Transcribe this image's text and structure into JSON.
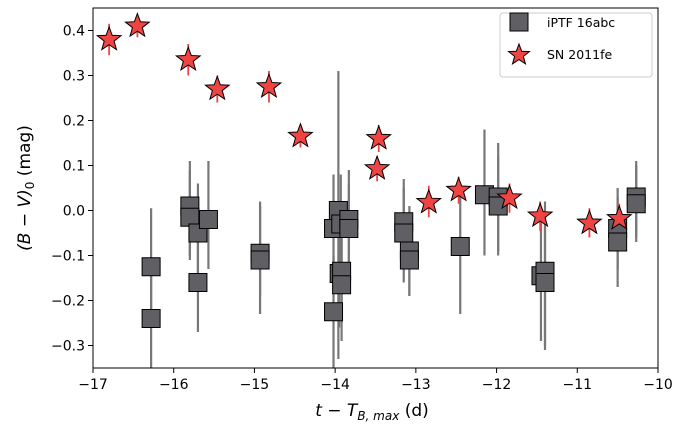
{
  "chart_data": {
    "type": "scatter",
    "xlabel_base": "t − T",
    "xlabel_sub": "B, max",
    "xlabel_unit": " (d)",
    "ylabel_base": "(B − V)",
    "ylabel_sub": "0",
    "ylabel_unit": " (mag)",
    "xlim": [
      -17,
      -10
    ],
    "ylim": [
      -0.35,
      0.45
    ],
    "xticks": [
      -17,
      -16,
      -15,
      -14,
      -13,
      -12,
      -11,
      -10
    ],
    "yticks": [
      -0.3,
      -0.2,
      -0.1,
      0.0,
      0.1,
      0.2,
      0.3,
      0.4
    ],
    "legend_position": "top-right",
    "series": [
      {
        "name": "iPTF 16abc",
        "marker": "square",
        "color": "#5f5f64",
        "errcolor": "#777777",
        "points": [
          {
            "x": -16.28,
            "y": -0.125,
            "lo": -0.24,
            "hi": 0.005
          },
          {
            "x": -16.28,
            "y": -0.24,
            "lo": -0.35,
            "hi": -0.13
          },
          {
            "x": -15.8,
            "y": 0.01,
            "lo": -0.1,
            "hi": 0.11
          },
          {
            "x": -15.8,
            "y": -0.015,
            "lo": -0.11,
            "hi": 0.09
          },
          {
            "x": -15.7,
            "y": -0.05,
            "lo": -0.16,
            "hi": 0.06
          },
          {
            "x": -15.7,
            "y": -0.16,
            "lo": -0.27,
            "hi": -0.05
          },
          {
            "x": -15.57,
            "y": -0.02,
            "lo": -0.13,
            "hi": 0.11
          },
          {
            "x": -14.93,
            "y": -0.095,
            "lo": -0.19,
            "hi": 0.02
          },
          {
            "x": -14.93,
            "y": -0.11,
            "lo": -0.23,
            "hi": 0.01
          },
          {
            "x": -14.02,
            "y": -0.04,
            "lo": -0.14,
            "hi": 0.08
          },
          {
            "x": -13.96,
            "y": 0.0,
            "lo": -0.33,
            "hi": 0.31
          },
          {
            "x": -13.93,
            "y": -0.03,
            "lo": -0.12,
            "hi": 0.08
          },
          {
            "x": -14.02,
            "y": -0.225,
            "lo": -0.35,
            "hi": -0.1
          },
          {
            "x": -13.95,
            "y": -0.14,
            "lo": -0.26,
            "hi": -0.02
          },
          {
            "x": -13.92,
            "y": -0.135,
            "lo": -0.25,
            "hi": -0.03
          },
          {
            "x": -13.92,
            "y": -0.165,
            "lo": -0.29,
            "hi": -0.05
          },
          {
            "x": -13.83,
            "y": -0.02,
            "lo": -0.13,
            "hi": 0.09
          },
          {
            "x": -13.83,
            "y": -0.04,
            "lo": -0.15,
            "hi": 0.06
          },
          {
            "x": -13.15,
            "y": -0.025,
            "lo": -0.13,
            "hi": 0.07
          },
          {
            "x": -13.15,
            "y": -0.05,
            "lo": -0.16,
            "hi": 0.05
          },
          {
            "x": -13.08,
            "y": -0.09,
            "lo": -0.19,
            "hi": 0.01
          },
          {
            "x": -13.08,
            "y": -0.11,
            "lo": -0.19,
            "hi": -0.02
          },
          {
            "x": -12.45,
            "y": -0.08,
            "lo": -0.23,
            "hi": 0.06
          },
          {
            "x": -12.15,
            "y": 0.035,
            "lo": -0.1,
            "hi": 0.18
          },
          {
            "x": -11.98,
            "y": 0.03,
            "lo": -0.09,
            "hi": 0.15
          },
          {
            "x": -11.98,
            "y": 0.01,
            "lo": -0.1,
            "hi": 0.12
          },
          {
            "x": -11.45,
            "y": -0.145,
            "lo": -0.29,
            "hi": -0.01
          },
          {
            "x": -11.4,
            "y": -0.135,
            "lo": -0.31,
            "hi": 0.02
          },
          {
            "x": -11.4,
            "y": -0.16,
            "lo": -0.3,
            "hi": -0.03
          },
          {
            "x": -10.5,
            "y": -0.04,
            "lo": -0.13,
            "hi": 0.05
          },
          {
            "x": -10.5,
            "y": -0.07,
            "lo": -0.17,
            "hi": 0.03
          },
          {
            "x": -10.27,
            "y": 0.03,
            "lo": -0.06,
            "hi": 0.11
          },
          {
            "x": -10.27,
            "y": 0.015,
            "lo": -0.07,
            "hi": 0.1
          }
        ]
      },
      {
        "name": "SN 2011fe",
        "marker": "star",
        "color": "#ef4444",
        "errcolor": "#ef4444",
        "points": [
          {
            "x": -16.8,
            "y": 0.38,
            "lo": 0.345,
            "hi": 0.415
          },
          {
            "x": -16.45,
            "y": 0.41,
            "lo": 0.385,
            "hi": 0.435
          },
          {
            "x": -15.82,
            "y": 0.335,
            "lo": 0.3,
            "hi": 0.37
          },
          {
            "x": -15.46,
            "y": 0.27,
            "lo": 0.24,
            "hi": 0.3
          },
          {
            "x": -14.82,
            "y": 0.275,
            "lo": 0.24,
            "hi": 0.31
          },
          {
            "x": -14.43,
            "y": 0.165,
            "lo": 0.14,
            "hi": 0.19
          },
          {
            "x": -13.46,
            "y": 0.16,
            "lo": 0.13,
            "hi": 0.19
          },
          {
            "x": -13.48,
            "y": 0.093,
            "lo": 0.065,
            "hi": 0.12
          },
          {
            "x": -12.84,
            "y": 0.018,
            "lo": -0.015,
            "hi": 0.055
          },
          {
            "x": -12.47,
            "y": 0.045,
            "lo": 0.015,
            "hi": 0.075
          },
          {
            "x": -11.84,
            "y": 0.028,
            "lo": -0.005,
            "hi": 0.06
          },
          {
            "x": -11.46,
            "y": -0.012,
            "lo": -0.045,
            "hi": 0.02
          },
          {
            "x": -10.85,
            "y": -0.028,
            "lo": -0.06,
            "hi": 0.005
          },
          {
            "x": -10.48,
            "y": -0.018,
            "lo": -0.05,
            "hi": 0.015
          }
        ]
      }
    ]
  }
}
